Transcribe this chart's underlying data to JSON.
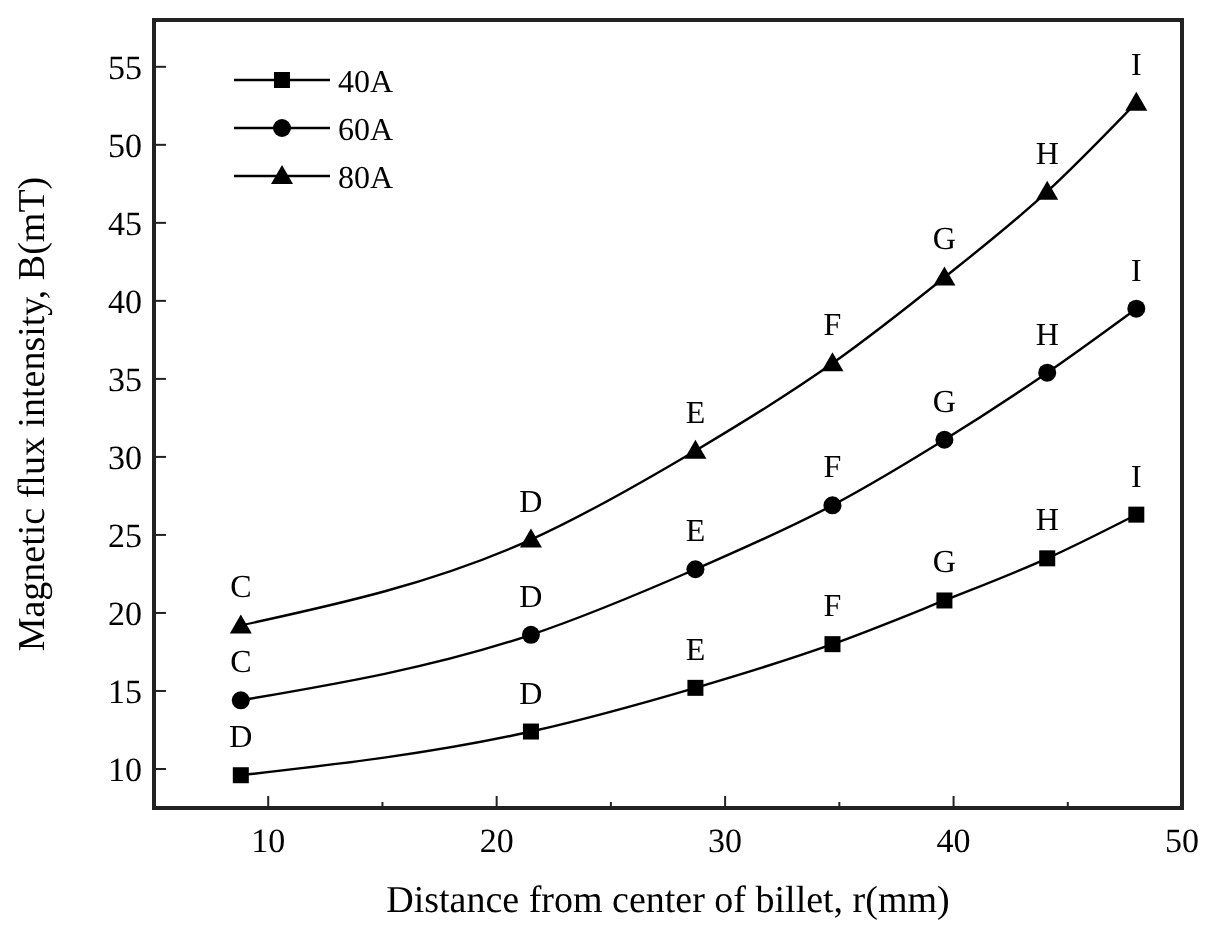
{
  "chart_data": {
    "type": "line",
    "xlabel": "Distance from center of billet, r(mm)",
    "ylabel": "Magnetic flux intensity, B(mT)",
    "xlim": [
      5,
      50
    ],
    "xticks": [
      10,
      {
        "value": 15,
        "label": null
      },
      20,
      {
        "value": 25,
        "label": null
      },
      30,
      {
        "value": 35,
        "label": null
      },
      40,
      {
        "value": 45,
        "label": null
      },
      50
    ],
    "ylim": [
      7.5,
      58
    ],
    "yticks": [
      10,
      15,
      20,
      25,
      30,
      35,
      40,
      45,
      50,
      55
    ],
    "x": [
      8.8,
      21.5,
      28.7,
      34.7,
      39.6,
      44.1,
      48.0
    ],
    "series": [
      {
        "name": "40A",
        "color": "#000000",
        "marker": "square",
        "values": [
          9.6,
          12.4,
          15.2,
          18.0,
          20.8,
          23.5,
          26.3
        ]
      },
      {
        "name": "60A",
        "color": "#000000",
        "marker": "circle",
        "values": [
          14.4,
          18.6,
          22.8,
          26.9,
          31.1,
          35.4,
          39.5
        ]
      },
      {
        "name": "80A",
        "color": "#000000",
        "marker": "triangle",
        "values": [
          19.2,
          24.7,
          30.4,
          36.0,
          41.5,
          47.0,
          52.7
        ]
      }
    ],
    "legend": "top left",
    "grid": false,
    "line_style": "solid",
    "annotations": [
      {
        "text": "D",
        "x": 8.8,
        "y": 9.6
      },
      {
        "text": "D",
        "x": 21.5,
        "y": 12.4
      },
      {
        "text": "E",
        "x": 28.7,
        "y": 15.2
      },
      {
        "text": "F",
        "x": 34.7,
        "y": 18.0
      },
      {
        "text": "G",
        "x": 39.6,
        "y": 20.8
      },
      {
        "text": "H",
        "x": 44.1,
        "y": 23.5
      },
      {
        "text": "I",
        "x": 48.0,
        "y": 26.3
      },
      {
        "text": "C",
        "x": 8.8,
        "y": 14.4
      },
      {
        "text": "D",
        "x": 21.5,
        "y": 18.6
      },
      {
        "text": "E",
        "x": 28.7,
        "y": 22.8
      },
      {
        "text": "F",
        "x": 34.7,
        "y": 26.9
      },
      {
        "text": "G",
        "x": 39.6,
        "y": 31.1
      },
      {
        "text": "H",
        "x": 44.1,
        "y": 35.4
      },
      {
        "text": "I",
        "x": 48.0,
        "y": 39.5
      },
      {
        "text": "C",
        "x": 8.8,
        "y": 19.2
      },
      {
        "text": "D",
        "x": 21.5,
        "y": 24.7
      },
      {
        "text": "E",
        "x": 28.7,
        "y": 30.4
      },
      {
        "text": "F",
        "x": 34.7,
        "y": 36.0
      },
      {
        "text": "G",
        "x": 39.6,
        "y": 41.5
      },
      {
        "text": "H",
        "x": 44.1,
        "y": 47.0
      },
      {
        "text": "I",
        "x": 48.0,
        "y": 52.7
      }
    ]
  }
}
